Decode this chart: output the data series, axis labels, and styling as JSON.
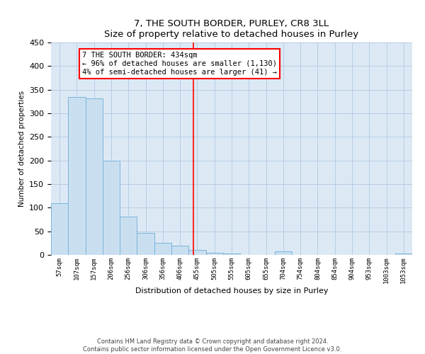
{
  "title": "7, THE SOUTH BORDER, PURLEY, CR8 3LL",
  "subtitle": "Size of property relative to detached houses in Purley",
  "xlabel": "Distribution of detached houses by size in Purley",
  "ylabel": "Number of detached properties",
  "bar_color": "#c9dff0",
  "bar_edge_color": "#7ab4d8",
  "background_color": "#ffffff",
  "plot_bg_color": "#dce9f5",
  "grid_color": "#b0c8e0",
  "bin_labels": [
    "57sqm",
    "107sqm",
    "157sqm",
    "206sqm",
    "256sqm",
    "306sqm",
    "356sqm",
    "406sqm",
    "455sqm",
    "505sqm",
    "555sqm",
    "605sqm",
    "655sqm",
    "704sqm",
    "754sqm",
    "804sqm",
    "854sqm",
    "904sqm",
    "953sqm",
    "1003sqm",
    "1053sqm"
  ],
  "bar_values": [
    109,
    335,
    332,
    200,
    81,
    46,
    25,
    20,
    11,
    5,
    3,
    0,
    0,
    8,
    0,
    0,
    0,
    0,
    0,
    0,
    3
  ],
  "vline_x": 7.77,
  "annotation_title": "7 THE SOUTH BORDER: 434sqm",
  "annotation_line1": "← 96% of detached houses are smaller (1,130)",
  "annotation_line2": "4% of semi-detached houses are larger (41) →",
  "ylim": [
    0,
    450
  ],
  "yticks": [
    0,
    50,
    100,
    150,
    200,
    250,
    300,
    350,
    400,
    450
  ],
  "footer1": "Contains HM Land Registry data © Crown copyright and database right 2024.",
  "footer2": "Contains public sector information licensed under the Open Government Licence v3.0."
}
